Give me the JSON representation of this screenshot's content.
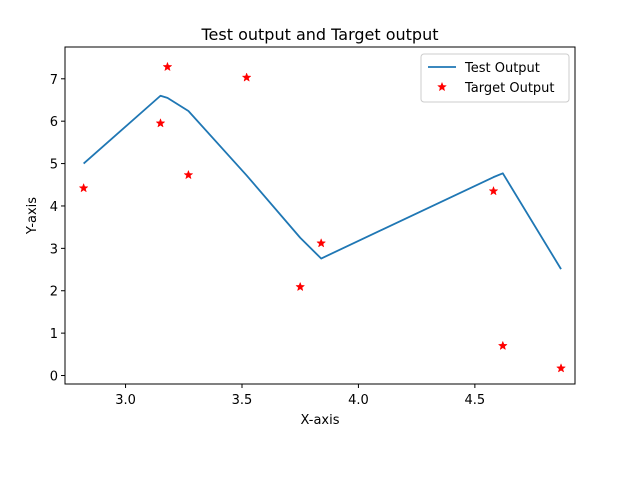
{
  "chart_data": {
    "type": "line",
    "title": "Test output and Target output",
    "xlabel": "X-axis",
    "ylabel": "Y-axis",
    "xlim": [
      2.74,
      4.93
    ],
    "ylim": [
      -0.2,
      7.75
    ],
    "xticks": [
      3.0,
      3.5,
      4.0,
      4.5
    ],
    "xtick_labels": [
      "3.0",
      "3.5",
      "4.0",
      "4.5"
    ],
    "yticks": [
      0,
      1,
      2,
      3,
      4,
      5,
      6,
      7
    ],
    "ytick_labels": [
      "0",
      "1",
      "2",
      "3",
      "4",
      "5",
      "6",
      "7"
    ],
    "grid": false,
    "legend_position": "top-right",
    "series": [
      {
        "name": "Test Output",
        "kind": "line",
        "color": "#1f77b4",
        "x": [
          2.82,
          3.15,
          3.18,
          3.27,
          3.52,
          3.75,
          3.84,
          4.58,
          4.62,
          4.87
        ],
        "y": [
          5.0,
          6.6,
          6.55,
          6.24,
          4.72,
          3.25,
          2.76,
          4.68,
          4.77,
          2.51
        ]
      },
      {
        "name": "Target Output",
        "kind": "scatter",
        "color": "#ff0000",
        "marker": "star",
        "x": [
          2.82,
          3.15,
          3.18,
          3.27,
          3.52,
          3.75,
          3.84,
          4.58,
          4.62,
          4.87
        ],
        "y": [
          4.42,
          5.95,
          7.28,
          4.73,
          7.03,
          2.09,
          3.12,
          4.35,
          0.7,
          0.17
        ]
      }
    ]
  }
}
